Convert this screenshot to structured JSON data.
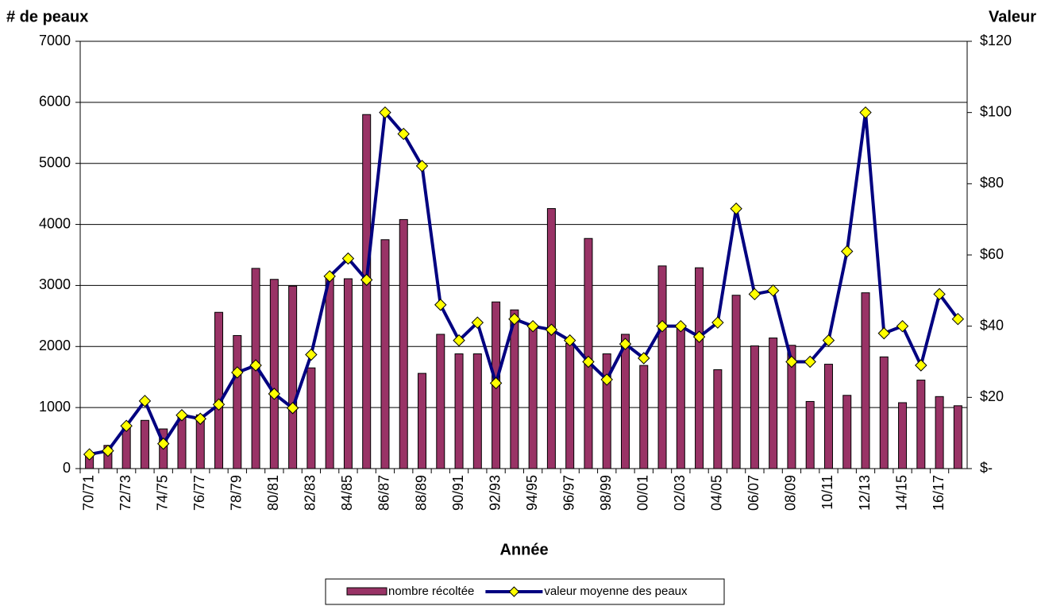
{
  "chart_data": {
    "type": "bar_line",
    "y_label": "# de peaux",
    "y2_label": "Valeur",
    "x_label": "Année",
    "categories": [
      "70/71",
      null,
      "72/73",
      null,
      "74/75",
      null,
      "76/77",
      null,
      "78/79",
      null,
      "80/81",
      null,
      "82/83",
      null,
      "84/85",
      null,
      "86/87",
      null,
      "88/89",
      null,
      "90/91",
      null,
      "92/93",
      null,
      "94/95",
      null,
      "96/97",
      null,
      "98/99",
      null,
      "00/01",
      null,
      "02/03",
      null,
      "04/05",
      null,
      "06/07",
      null,
      "08/09",
      null,
      "10/11",
      null,
      "12/13",
      null,
      "14/15",
      null,
      "16/17",
      null
    ],
    "series": [
      {
        "name": "nombre récoltée",
        "type": "bar",
        "color": "#993366",
        "values": [
          220,
          380,
          700,
          790,
          650,
          880,
          880,
          2560,
          2180,
          3280,
          3100,
          2990,
          1650,
          3150,
          3110,
          5800,
          3750,
          4080,
          1560,
          2200,
          1880,
          1880,
          2730,
          2600,
          2300,
          4260,
          2050,
          3770,
          1880,
          2200,
          1690,
          3320,
          2350,
          3290,
          1620,
          2840,
          2010,
          2140,
          2020,
          1100,
          1710,
          1200,
          2880,
          1830,
          1080,
          1450,
          1180,
          1030
        ]
      },
      {
        "name": "valeur moyenne des peaux",
        "type": "line",
        "axis": "y2",
        "color": "#000080",
        "marker_color": "#ffff00",
        "values": [
          4,
          5,
          12,
          19,
          7,
          15,
          14,
          18,
          27,
          29,
          21,
          17,
          32,
          54,
          59,
          53,
          100,
          94,
          85,
          46,
          36,
          41,
          24,
          42,
          40,
          39,
          36,
          30,
          25,
          35,
          31,
          40,
          40,
          37,
          41,
          73,
          49,
          50,
          30,
          30,
          36,
          61,
          100,
          38,
          40,
          29,
          49,
          42
        ]
      }
    ],
    "ylim": [
      0,
      7000
    ],
    "yticks": [
      0,
      1000,
      2000,
      3000,
      4000,
      5000,
      6000,
      7000
    ],
    "y2lim": [
      0,
      120
    ],
    "y2ticks": [
      {
        "value": 0,
        "label": "$-"
      },
      {
        "value": 20,
        "label": "$20"
      },
      {
        "value": 40,
        "label": "$40"
      },
      {
        "value": 60,
        "label": "$60"
      },
      {
        "value": 80,
        "label": "$80"
      },
      {
        "value": 100,
        "label": "$100"
      },
      {
        "value": 120,
        "label": "$120"
      }
    ],
    "grid": true,
    "legend": "bottom"
  }
}
